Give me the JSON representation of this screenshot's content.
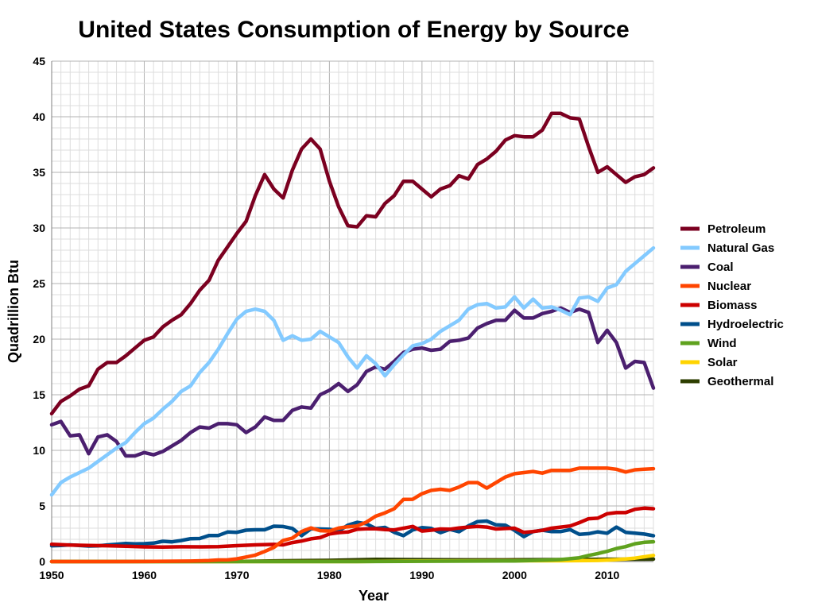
{
  "chart_data": {
    "type": "line",
    "title": "United States Consumption of Energy by Source",
    "xlabel": "Year",
    "ylabel": "Quadrillion Btu",
    "xlim": [
      1950,
      2015
    ],
    "ylim": [
      0,
      45
    ],
    "xticks": [
      1950,
      1960,
      1970,
      1980,
      1990,
      2000,
      2010
    ],
    "yticks": [
      0,
      5,
      10,
      15,
      20,
      25,
      30,
      35,
      40,
      45
    ],
    "grid": true,
    "legend_position": "right",
    "series": [
      {
        "name": "Petroleum",
        "color": "#7b0020",
        "x": [
          1950,
          1951,
          1952,
          1953,
          1954,
          1955,
          1956,
          1957,
          1958,
          1959,
          1960,
          1961,
          1962,
          1963,
          1964,
          1965,
          1966,
          1967,
          1968,
          1969,
          1970,
          1971,
          1972,
          1973,
          1974,
          1975,
          1976,
          1977,
          1978,
          1979,
          1980,
          1981,
          1982,
          1983,
          1984,
          1985,
          1986,
          1987,
          1988,
          1989,
          1990,
          1991,
          1992,
          1993,
          1994,
          1995,
          1996,
          1997,
          1998,
          1999,
          2000,
          2001,
          2002,
          2003,
          2004,
          2005,
          2006,
          2007,
          2008,
          2009,
          2010,
          2011,
          2012,
          2013,
          2014,
          2015
        ],
        "y": [
          13.3,
          14.4,
          14.9,
          15.5,
          15.8,
          17.3,
          17.9,
          17.9,
          18.5,
          19.2,
          19.9,
          20.2,
          21.1,
          21.7,
          22.2,
          23.2,
          24.4,
          25.3,
          27.1,
          28.3,
          29.5,
          30.6,
          32.9,
          34.8,
          33.5,
          32.7,
          35.2,
          37.1,
          38.0,
          37.1,
          34.2,
          31.9,
          30.2,
          30.1,
          31.1,
          31.0,
          32.2,
          32.9,
          34.2,
          34.2,
          33.5,
          32.8,
          33.5,
          33.8,
          34.7,
          34.4,
          35.7,
          36.2,
          36.9,
          37.9,
          38.3,
          38.2,
          38.2,
          38.8,
          40.3,
          40.3,
          39.9,
          39.8,
          37.3,
          35.0,
          35.5,
          34.8,
          34.1,
          34.6,
          34.8,
          35.4
        ]
      },
      {
        "name": "Natural Gas",
        "color": "#83caff",
        "x": [
          1950,
          1951,
          1952,
          1953,
          1954,
          1955,
          1956,
          1957,
          1958,
          1959,
          1960,
          1961,
          1962,
          1963,
          1964,
          1965,
          1966,
          1967,
          1968,
          1969,
          1970,
          1971,
          1972,
          1973,
          1974,
          1975,
          1976,
          1977,
          1978,
          1979,
          1980,
          1981,
          1982,
          1983,
          1984,
          1985,
          1986,
          1987,
          1988,
          1989,
          1990,
          1991,
          1992,
          1993,
          1994,
          1995,
          1996,
          1997,
          1998,
          1999,
          2000,
          2001,
          2002,
          2003,
          2004,
          2005,
          2006,
          2007,
          2008,
          2009,
          2010,
          2011,
          2012,
          2013,
          2014,
          2015
        ],
        "y": [
          6.0,
          7.1,
          7.6,
          8.0,
          8.4,
          9.0,
          9.6,
          10.2,
          10.7,
          11.6,
          12.4,
          12.9,
          13.7,
          14.4,
          15.3,
          15.8,
          17.0,
          17.9,
          19.1,
          20.5,
          21.8,
          22.5,
          22.7,
          22.5,
          21.7,
          19.9,
          20.3,
          19.9,
          20.0,
          20.7,
          20.2,
          19.7,
          18.4,
          17.4,
          18.5,
          17.8,
          16.7,
          17.7,
          18.6,
          19.4,
          19.6,
          20.0,
          20.7,
          21.2,
          21.7,
          22.7,
          23.1,
          23.2,
          22.8,
          22.9,
          23.8,
          22.8,
          23.6,
          22.8,
          22.9,
          22.6,
          22.2,
          23.7,
          23.8,
          23.4,
          24.6,
          24.9,
          26.1,
          26.8,
          27.5,
          28.2
        ]
      },
      {
        "name": "Coal",
        "color": "#4b1f6f",
        "x": [
          1950,
          1951,
          1952,
          1953,
          1954,
          1955,
          1956,
          1957,
          1958,
          1959,
          1960,
          1961,
          1962,
          1963,
          1964,
          1965,
          1966,
          1967,
          1968,
          1969,
          1970,
          1971,
          1972,
          1973,
          1974,
          1975,
          1976,
          1977,
          1978,
          1979,
          1980,
          1981,
          1982,
          1983,
          1984,
          1985,
          1986,
          1987,
          1988,
          1989,
          1990,
          1991,
          1992,
          1993,
          1994,
          1995,
          1996,
          1997,
          1998,
          1999,
          2000,
          2001,
          2002,
          2003,
          2004,
          2005,
          2006,
          2007,
          2008,
          2009,
          2010,
          2011,
          2012,
          2013,
          2014,
          2015
        ],
        "y": [
          12.3,
          12.6,
          11.3,
          11.4,
          9.7,
          11.2,
          11.4,
          10.8,
          9.5,
          9.5,
          9.8,
          9.6,
          9.9,
          10.4,
          10.9,
          11.6,
          12.1,
          12.0,
          12.4,
          12.4,
          12.3,
          11.6,
          12.1,
          13.0,
          12.7,
          12.7,
          13.6,
          13.9,
          13.8,
          15.0,
          15.4,
          16.0,
          15.3,
          15.9,
          17.1,
          17.5,
          17.3,
          18.0,
          18.8,
          19.1,
          19.2,
          19.0,
          19.1,
          19.8,
          19.9,
          20.1,
          21.0,
          21.4,
          21.7,
          21.7,
          22.6,
          21.9,
          21.9,
          22.3,
          22.5,
          22.8,
          22.4,
          22.7,
          22.4,
          19.7,
          20.8,
          19.7,
          17.4,
          18.0,
          17.9,
          15.6
        ]
      },
      {
        "name": "Nuclear",
        "color": "#ff4500",
        "x": [
          1950,
          1955,
          1957,
          1960,
          1965,
          1967,
          1968,
          1969,
          1970,
          1971,
          1972,
          1973,
          1974,
          1975,
          1976,
          1977,
          1978,
          1979,
          1980,
          1981,
          1982,
          1983,
          1984,
          1985,
          1986,
          1987,
          1988,
          1989,
          1990,
          1991,
          1992,
          1993,
          1994,
          1995,
          1996,
          1997,
          1998,
          1999,
          2000,
          2001,
          2002,
          2003,
          2004,
          2005,
          2006,
          2007,
          2008,
          2009,
          2010,
          2011,
          2012,
          2013,
          2014,
          2015
        ],
        "y": [
          0,
          0,
          0,
          0.01,
          0.04,
          0.09,
          0.14,
          0.15,
          0.24,
          0.41,
          0.58,
          0.91,
          1.27,
          1.9,
          2.11,
          2.7,
          3.02,
          2.78,
          2.74,
          3.01,
          3.13,
          3.2,
          3.55,
          4.08,
          4.38,
          4.75,
          5.59,
          5.6,
          6.1,
          6.4,
          6.5,
          6.4,
          6.7,
          7.1,
          7.1,
          6.6,
          7.1,
          7.6,
          7.9,
          8.0,
          8.1,
          7.95,
          8.2,
          8.2,
          8.2,
          8.4,
          8.4,
          8.4,
          8.4,
          8.3,
          8.05,
          8.25,
          8.3,
          8.35
        ]
      },
      {
        "name": "Biomass",
        "color": "#cc0000",
        "x": [
          1950,
          1952,
          1954,
          1956,
          1958,
          1960,
          1962,
          1964,
          1966,
          1968,
          1970,
          1972,
          1974,
          1975,
          1976,
          1977,
          1978,
          1979,
          1980,
          1981,
          1982,
          1983,
          1984,
          1985,
          1986,
          1987,
          1988,
          1989,
          1990,
          1991,
          1992,
          1993,
          1994,
          1995,
          1996,
          1997,
          1998,
          1999,
          2000,
          2001,
          2002,
          2003,
          2004,
          2005,
          2006,
          2007,
          2008,
          2009,
          2010,
          2011,
          2012,
          2013,
          2014,
          2015
        ],
        "y": [
          1.56,
          1.48,
          1.44,
          1.42,
          1.38,
          1.32,
          1.3,
          1.33,
          1.32,
          1.34,
          1.43,
          1.5,
          1.54,
          1.5,
          1.71,
          1.84,
          2.04,
          2.15,
          2.48,
          2.6,
          2.66,
          2.9,
          2.94,
          2.94,
          2.87,
          2.84,
          3.0,
          3.16,
          2.74,
          2.82,
          2.93,
          2.91,
          3.02,
          3.1,
          3.16,
          3.1,
          2.93,
          2.97,
          3.0,
          2.62,
          2.7,
          2.81,
          3.0,
          3.1,
          3.2,
          3.5,
          3.85,
          3.9,
          4.3,
          4.4,
          4.4,
          4.7,
          4.8,
          4.75
        ]
      },
      {
        "name": "Hydroelectric",
        "color": "#004f8b",
        "x": [
          1950,
          1951,
          1952,
          1953,
          1954,
          1955,
          1956,
          1957,
          1958,
          1959,
          1960,
          1961,
          1962,
          1963,
          1964,
          1965,
          1966,
          1967,
          1968,
          1969,
          1970,
          1971,
          1972,
          1973,
          1974,
          1975,
          1976,
          1977,
          1978,
          1979,
          1980,
          1981,
          1982,
          1983,
          1984,
          1985,
          1986,
          1987,
          1988,
          1989,
          1990,
          1991,
          1992,
          1993,
          1994,
          1995,
          1996,
          1997,
          1998,
          1999,
          2000,
          2001,
          2002,
          2003,
          2004,
          2005,
          2006,
          2007,
          2008,
          2009,
          2010,
          2011,
          2012,
          2013,
          2014,
          2015
        ],
        "y": [
          1.42,
          1.45,
          1.5,
          1.44,
          1.39,
          1.41,
          1.49,
          1.56,
          1.63,
          1.59,
          1.61,
          1.66,
          1.82,
          1.77,
          1.89,
          2.06,
          2.07,
          2.34,
          2.34,
          2.66,
          2.63,
          2.82,
          2.86,
          2.86,
          3.18,
          3.15,
          2.98,
          2.33,
          2.94,
          2.93,
          2.9,
          2.76,
          3.27,
          3.53,
          3.39,
          2.97,
          3.07,
          2.63,
          2.33,
          2.84,
          3.05,
          2.98,
          2.6,
          2.89,
          2.68,
          3.2,
          3.59,
          3.64,
          3.3,
          3.27,
          2.81,
          2.24,
          2.69,
          2.82,
          2.69,
          2.7,
          2.87,
          2.45,
          2.51,
          2.67,
          2.54,
          3.1,
          2.63,
          2.56,
          2.47,
          2.32
        ]
      },
      {
        "name": "Wind",
        "color": "#5fa21e",
        "x": [
          1950,
          1983,
          1990,
          2000,
          2002,
          2004,
          2005,
          2006,
          2007,
          2008,
          2009,
          2010,
          2011,
          2012,
          2013,
          2014,
          2015
        ],
        "y": [
          0,
          0.0,
          0.03,
          0.06,
          0.1,
          0.14,
          0.18,
          0.26,
          0.34,
          0.55,
          0.72,
          0.92,
          1.17,
          1.34,
          1.6,
          1.73,
          1.78
        ]
      },
      {
        "name": "Solar",
        "color": "#ffd400",
        "x": [
          1950,
          1983,
          1990,
          2000,
          2005,
          2008,
          2009,
          2010,
          2011,
          2012,
          2013,
          2014,
          2015
        ],
        "y": [
          0,
          0.0,
          0.06,
          0.07,
          0.07,
          0.09,
          0.1,
          0.13,
          0.17,
          0.23,
          0.31,
          0.43,
          0.55
        ]
      },
      {
        "name": "Geothermal",
        "color": "#2d3e00",
        "x": [
          1950,
          1970,
          1975,
          1980,
          1985,
          1990,
          1995,
          2000,
          2005,
          2010,
          2015
        ],
        "y": [
          0,
          0.01,
          0.07,
          0.11,
          0.2,
          0.17,
          0.15,
          0.16,
          0.18,
          0.21,
          0.22
        ]
      }
    ]
  }
}
